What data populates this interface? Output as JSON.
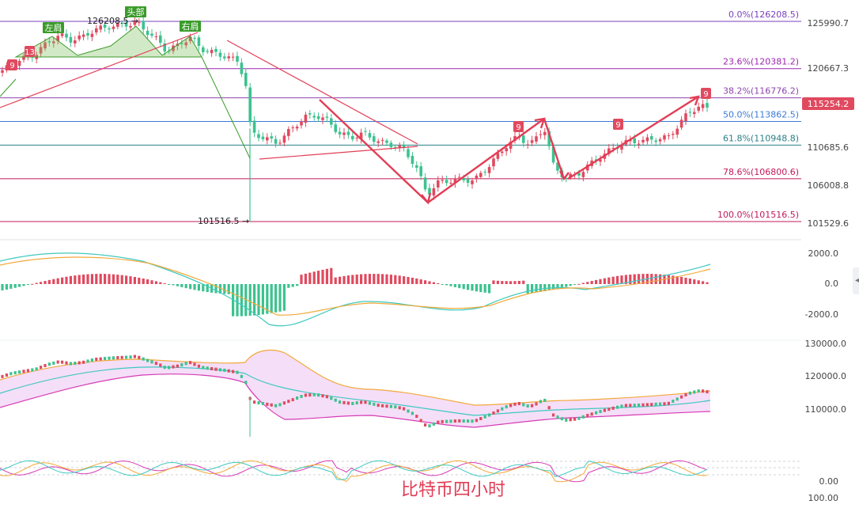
{
  "chart_data": {
    "type": "candlestick",
    "title": "比特币四小时",
    "current_price": "115254.2",
    "main_axis_ticks": [
      "125990.7",
      "120667.3",
      "110685.6",
      "106008.8",
      "101529.6"
    ],
    "fibonacci": [
      {
        "label": "0.0%(126208.5)",
        "value": 126208.5,
        "color": "#7b3fbf"
      },
      {
        "label": "23.6%(120381.2)",
        "value": 120381.2,
        "color": "#9c27b0"
      },
      {
        "label": "38.2%(116776.2)",
        "value": 116776.2,
        "color": "#8e44ad"
      },
      {
        "label": "50.0%(113862.5)",
        "value": 113862.5,
        "color": "#3a7bd5"
      },
      {
        "label": "61.8%(110948.8)",
        "value": 110948.8,
        "color": "#2a7f88"
      },
      {
        "label": "78.6%(106800.6)",
        "value": 106800.6,
        "color": "#c2185b"
      },
      {
        "label": "100.0%(101516.5)",
        "value": 101516.5,
        "color": "#c2185b"
      }
    ],
    "annotations": {
      "high": "126208.5",
      "low": "101516.5",
      "left_shoulder": "左肩",
      "head": "头部",
      "right_shoulder": "右肩",
      "td_badges": [
        "9",
        "13",
        "9",
        "9",
        "9"
      ]
    },
    "macd_ticks": [
      "2000.0",
      "0.0",
      "-2000.0"
    ],
    "boll_ticks": [
      "130000.0",
      "120000.0",
      "110000.0"
    ],
    "rsi_ticks": [
      "0.00",
      "100.00"
    ],
    "colors": {
      "up": "#e04a5f",
      "down": "#3cc28f",
      "accent": "#e23d55"
    }
  }
}
